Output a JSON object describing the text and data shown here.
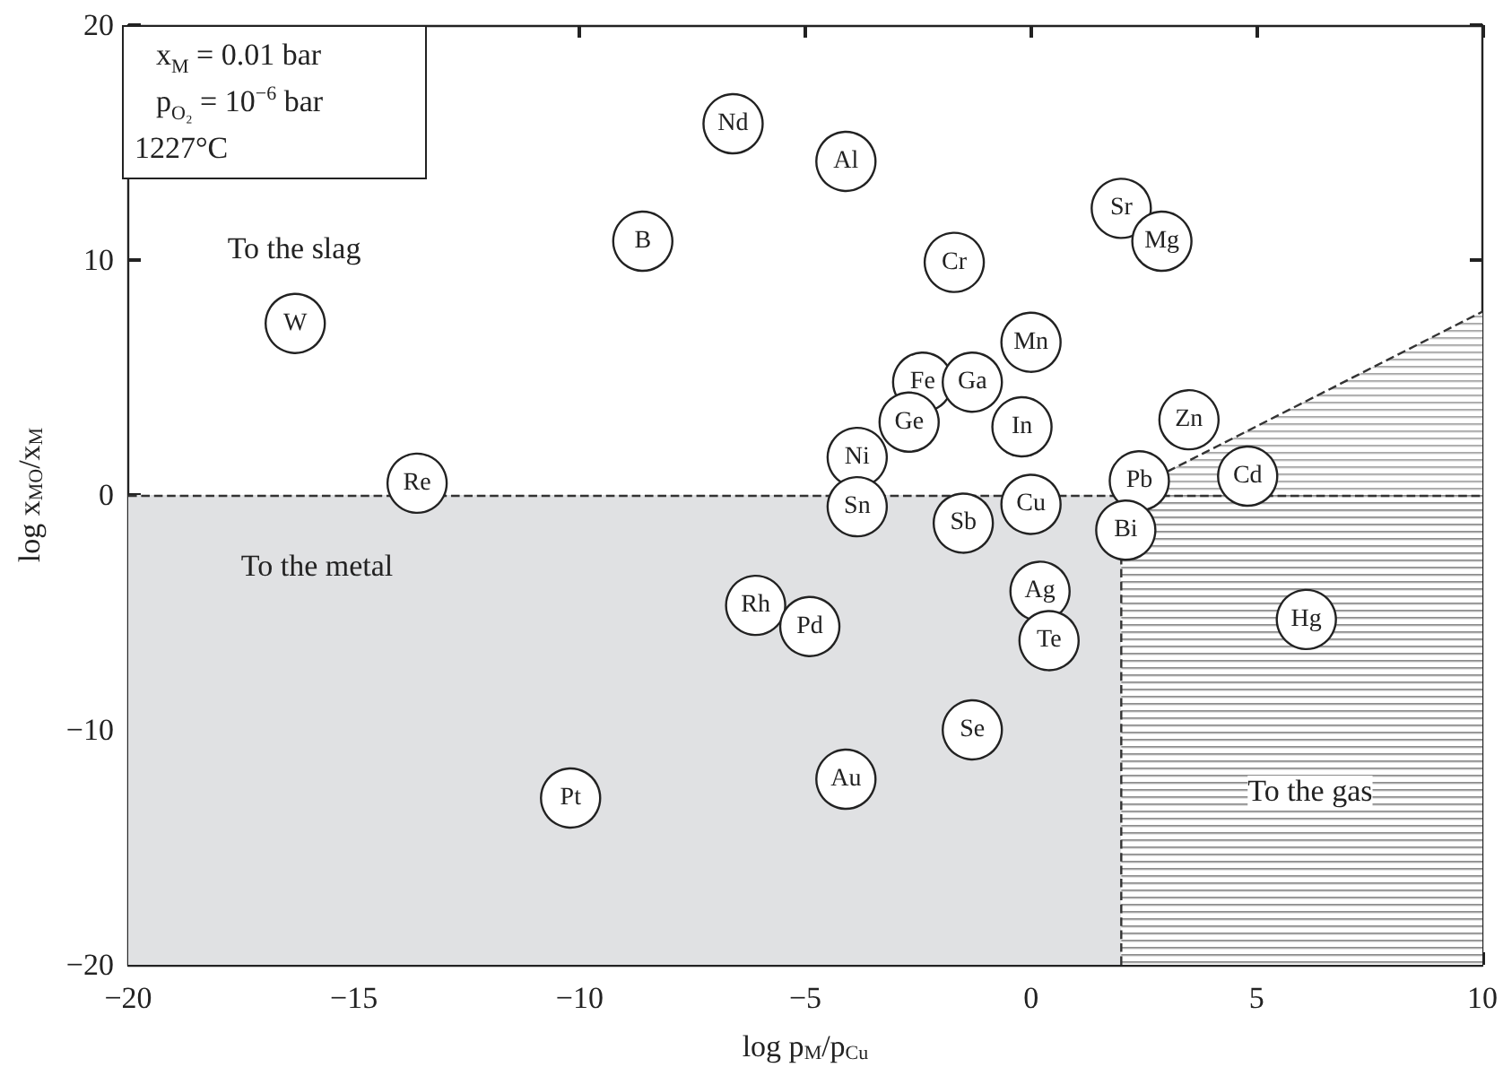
{
  "chart_data": {
    "type": "scatter",
    "xlabel": "log p$_{M}$/p$_{Cu}$",
    "ylabel": "log x$_{MO}$/x$_{M}$",
    "xlim": [
      -20,
      10
    ],
    "xticks": [
      -20,
      -15,
      -10,
      -5,
      0,
      5,
      10
    ],
    "ylim": [
      -20,
      20
    ],
    "yticks": [
      -20,
      -10,
      0,
      10,
      20
    ],
    "grid": false,
    "marker": "circle",
    "annotations": [
      "x$_{M}$ = 0.01 bar",
      "p$_{O₂}$ = 10$^{−6}$ bar",
      "1227°C",
      "To the slag",
      "To the metal",
      "To the gas"
    ],
    "ref_lines": [
      {
        "axis": "y",
        "value": 0,
        "line_style": "dashed",
        "color": "#333333"
      }
    ],
    "series": [
      {
        "type": "area",
        "color": "#e0e1e3",
        "x": [
          -20,
          2
        ],
        "values": [
          -20,
          -20
        ],
        "marker": "none"
      },
      {
        "type": "area",
        "color": "#8c8c8c",
        "x": [
          2,
          10
        ],
        "values": [
          -20,
          -20
        ],
        "marker": "none"
      },
      {
        "type": "area",
        "color": "#a6a6a6",
        "x": [
          2,
          10
        ],
        "values": [
          0,
          7.8
        ],
        "line_style": "dashed",
        "marker": "none"
      },
      {
        "type": "line",
        "color": "#333333",
        "x": [
          2,
          2
        ],
        "values": [
          -20,
          0
        ],
        "line_style": "dashed",
        "marker": "none"
      },
      {
        "color": "#ffffff",
        "x": [
          -6.6,
          -4.1,
          -8.6,
          -16.3,
          -13.6,
          2.0,
          2.9,
          -1.7,
          0,
          -2.4,
          -1.3,
          -2.7,
          -0.2,
          3.5,
          -3.85,
          2.4,
          4.8,
          -3.85,
          0,
          -1.5,
          2.1,
          -6.1,
          -4.9,
          0.2,
          0.4,
          6.1,
          -1.3,
          -4.1,
          -10.2
        ],
        "values": [
          15.8,
          14.2,
          10.8,
          7.3,
          0.5,
          12.2,
          10.8,
          9.9,
          6.5,
          4.8,
          4.8,
          3.1,
          2.9,
          3.2,
          1.6,
          0.6,
          0.8,
          -0.5,
          -0.4,
          -1.2,
          -1.5,
          -4.7,
          -5.6,
          -4.1,
          -6.2,
          -5.3,
          -10.0,
          -12.1,
          -12.9
        ],
        "value_labels": [
          "Nd",
          "Al",
          "B",
          "W",
          "Re",
          "Sr",
          "Mg",
          "Cr",
          "Mn",
          "Fe",
          "Ga",
          "Ge",
          "In",
          "Zn",
          "Ni",
          "Pb",
          "Cd",
          "Sn",
          "Cu",
          "Sb",
          "Bi",
          "Rh",
          "Pd",
          "Ag",
          "Te",
          "Hg",
          "Se",
          "Au",
          "Pt"
        ]
      }
    ]
  }
}
